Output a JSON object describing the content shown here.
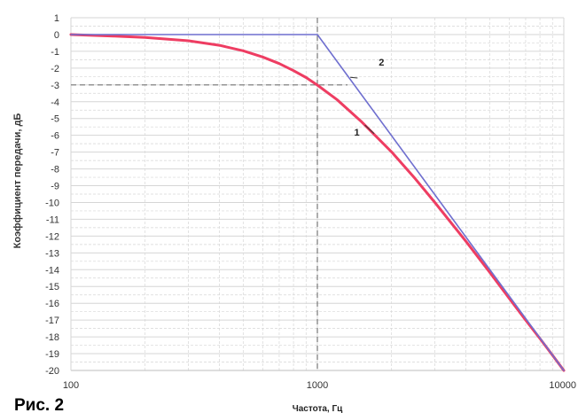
{
  "caption": "Рис. 2",
  "chart_data": {
    "type": "line",
    "title": "",
    "xlabel": "Частота, Гц",
    "ylabel": "Коэффициент передачи, дБ",
    "xscale": "log",
    "xlim": [
      100,
      10000
    ],
    "ylim": [
      -20,
      1
    ],
    "x_ticks": [
      "100",
      "1000",
      "10000"
    ],
    "y_ticks": [
      "1",
      "0",
      "-1",
      "-2",
      "-3",
      "-4",
      "-5",
      "-6",
      "-7",
      "-8",
      "-9",
      "-10",
      "-11",
      "-12",
      "-13",
      "-14",
      "-15",
      "-16",
      "-17",
      "-18",
      "-19",
      "-20"
    ],
    "grid": true,
    "colors": {
      "curve1": "#ee3d62",
      "curve2": "#6f6fcf",
      "grid": "#d6d6d6",
      "guide": "#777777"
    },
    "series": [
      {
        "name": "1",
        "x": [
          100,
          150,
          200,
          300,
          400,
          500,
          600,
          700,
          800,
          900,
          1000,
          1200,
          1500,
          2000,
          2500,
          3000,
          4000,
          5000,
          6000,
          7000,
          8000,
          9000,
          10000
        ],
        "y": [
          0,
          -0.1,
          -0.17,
          -0.37,
          -0.64,
          -0.97,
          -1.34,
          -1.73,
          -2.15,
          -2.56,
          -3.01,
          -3.87,
          -5.15,
          -6.99,
          -8.6,
          -10.0,
          -12.3,
          -14.15,
          -15.7,
          -17.0,
          -18.1,
          -19.1,
          -20.0
        ]
      },
      {
        "name": "2",
        "x": [
          100,
          1000,
          10000
        ],
        "y": [
          0,
          0,
          -20
        ]
      }
    ],
    "guides": [
      {
        "axis": "x",
        "value": 1000
      },
      {
        "axis": "y",
        "value": -3
      }
    ],
    "annotations": [
      {
        "text": "1",
        "x": 1520,
        "y": -5.6
      },
      {
        "text": "2",
        "x": 1420,
        "y": -2.8
      }
    ]
  }
}
